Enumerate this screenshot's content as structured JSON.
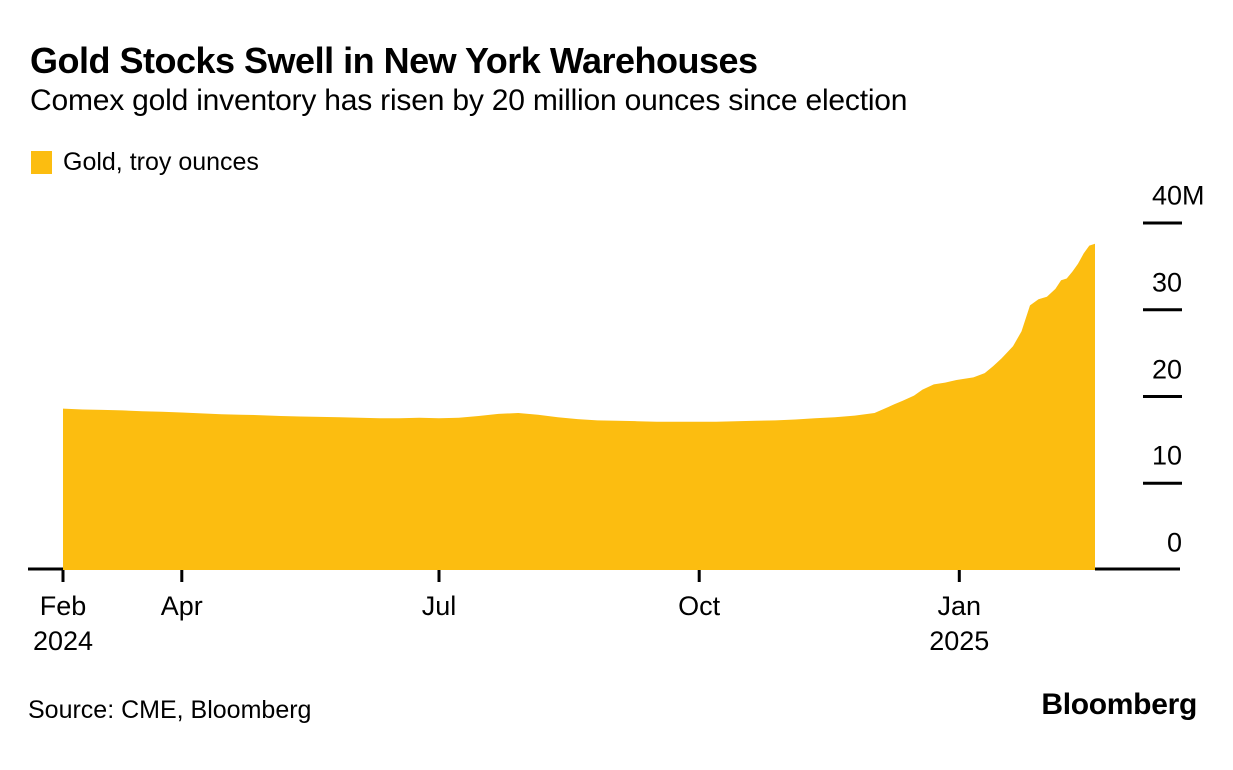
{
  "header": {
    "title": "Gold Stocks Swell in New York Warehouses",
    "subtitle": "Comex gold inventory has risen by 20 million ounces since election"
  },
  "legend": {
    "label": "Gold, troy ounces",
    "swatch_color": "#FCBD10"
  },
  "footer": {
    "source": "Source: CME, Bloomberg",
    "brand": "Bloomberg"
  },
  "chart_data": {
    "type": "area",
    "title": "Gold Stocks Swell in New York Warehouses",
    "subtitle": "Comex gold inventory has risen by 20 million ounces since election",
    "series_name": "Gold, troy ounces",
    "unit": "million troy ounces",
    "fill_color": "#FCBD10",
    "axis_color": "#000000",
    "grid": false,
    "legend_position": "top-left",
    "y_axis": {
      "side": "right",
      "min": 0,
      "max": 40,
      "ticks": [
        {
          "value": 0,
          "label": "0"
        },
        {
          "value": 10,
          "label": "10"
        },
        {
          "value": 20,
          "label": "20"
        },
        {
          "value": 30,
          "label": "30"
        },
        {
          "value": 40,
          "label": "40M"
        }
      ]
    },
    "x_axis": {
      "range": [
        "2024-02-19",
        "2025-02-18"
      ],
      "ticks": [
        {
          "date": "2024-02-19",
          "label": "Feb",
          "sublabel": "2024"
        },
        {
          "date": "2024-04-01",
          "label": "Apr",
          "sublabel": ""
        },
        {
          "date": "2024-07-01",
          "label": "Jul",
          "sublabel": ""
        },
        {
          "date": "2024-10-01",
          "label": "Oct",
          "sublabel": ""
        },
        {
          "date": "2025-01-01",
          "label": "Jan",
          "sublabel": "2025"
        }
      ]
    },
    "points": [
      [
        "2024-02-19",
        18.6
      ],
      [
        "2024-02-26",
        18.5
      ],
      [
        "2024-03-04",
        18.45
      ],
      [
        "2024-03-11",
        18.4
      ],
      [
        "2024-03-18",
        18.3
      ],
      [
        "2024-03-25",
        18.25
      ],
      [
        "2024-04-01",
        18.15
      ],
      [
        "2024-04-08",
        18.05
      ],
      [
        "2024-04-15",
        17.95
      ],
      [
        "2024-04-22",
        17.9
      ],
      [
        "2024-04-29",
        17.85
      ],
      [
        "2024-05-06",
        17.75
      ],
      [
        "2024-05-13",
        17.7
      ],
      [
        "2024-05-20",
        17.65
      ],
      [
        "2024-05-27",
        17.6
      ],
      [
        "2024-06-03",
        17.55
      ],
      [
        "2024-06-10",
        17.5
      ],
      [
        "2024-06-17",
        17.5
      ],
      [
        "2024-06-24",
        17.55
      ],
      [
        "2024-07-01",
        17.5
      ],
      [
        "2024-07-08",
        17.55
      ],
      [
        "2024-07-15",
        17.75
      ],
      [
        "2024-07-22",
        18.0
      ],
      [
        "2024-07-29",
        18.1
      ],
      [
        "2024-08-05",
        17.9
      ],
      [
        "2024-08-12",
        17.6
      ],
      [
        "2024-08-19",
        17.4
      ],
      [
        "2024-08-26",
        17.25
      ],
      [
        "2024-09-02",
        17.2
      ],
      [
        "2024-09-09",
        17.15
      ],
      [
        "2024-09-16",
        17.1
      ],
      [
        "2024-09-23",
        17.1
      ],
      [
        "2024-09-30",
        17.1
      ],
      [
        "2024-10-07",
        17.1
      ],
      [
        "2024-10-14",
        17.15
      ],
      [
        "2024-10-21",
        17.2
      ],
      [
        "2024-10-28",
        17.25
      ],
      [
        "2024-11-04",
        17.35
      ],
      [
        "2024-11-11",
        17.5
      ],
      [
        "2024-11-18",
        17.6
      ],
      [
        "2024-11-25",
        17.8
      ],
      [
        "2024-12-02",
        18.1
      ],
      [
        "2024-12-09",
        19.1
      ],
      [
        "2024-12-12",
        19.5
      ],
      [
        "2024-12-16",
        20.1
      ],
      [
        "2024-12-19",
        20.8
      ],
      [
        "2024-12-23",
        21.4
      ],
      [
        "2024-12-27",
        21.6
      ],
      [
        "2024-12-31",
        21.9
      ],
      [
        "2025-01-06",
        22.2
      ],
      [
        "2025-01-10",
        22.7
      ],
      [
        "2025-01-13",
        23.5
      ],
      [
        "2025-01-16",
        24.4
      ],
      [
        "2025-01-20",
        25.8
      ],
      [
        "2025-01-23",
        27.5
      ],
      [
        "2025-01-26",
        30.5
      ],
      [
        "2025-01-29",
        31.2
      ],
      [
        "2025-02-01",
        31.5
      ],
      [
        "2025-02-04",
        32.4
      ],
      [
        "2025-02-06",
        33.4
      ],
      [
        "2025-02-08",
        33.6
      ],
      [
        "2025-02-10",
        34.4
      ],
      [
        "2025-02-12",
        35.3
      ],
      [
        "2025-02-14",
        36.5
      ],
      [
        "2025-02-16",
        37.4
      ],
      [
        "2025-02-18",
        37.6
      ]
    ]
  }
}
